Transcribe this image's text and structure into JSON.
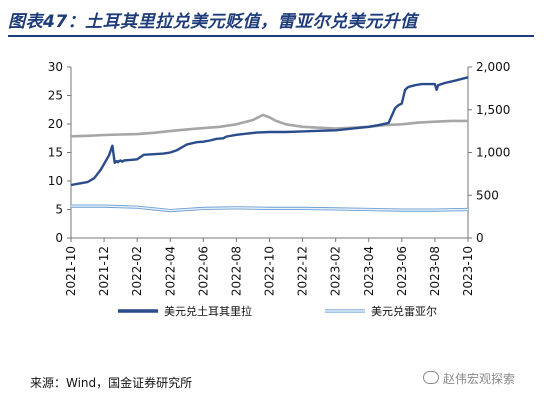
{
  "figure": {
    "title": "图表47：土耳其里拉兑美元贬值，雷亚尔兑美元升值",
    "source": "来源：Wind，国金证券研究所",
    "watermark": "赵伟宏观探索"
  },
  "chart_data": {
    "type": "line",
    "x_tick_labels": [
      "2021-10",
      "2021-12",
      "2022-02",
      "2022-04",
      "2022-06",
      "2022-08",
      "2022-10",
      "2022-12",
      "2023-02",
      "2023-04",
      "2023-06",
      "2023-08",
      "2023-10"
    ],
    "left_axis": {
      "ylim": [
        0,
        30
      ],
      "ticks": [
        0,
        5,
        10,
        15,
        20,
        25,
        30
      ]
    },
    "right_axis": {
      "ylim": [
        0,
        2000
      ],
      "ticks": [
        "0",
        "500",
        "1,000",
        "1,500",
        "2,000"
      ]
    },
    "series": [
      {
        "name": "美元兑土耳其里拉",
        "axis": "left",
        "color": "#2b4c8c",
        "x": [
          0,
          0.2,
          0.5,
          0.7,
          0.9,
          1.05,
          1.15,
          1.25,
          1.32,
          1.38,
          1.42,
          1.45,
          1.5,
          1.55,
          1.6,
          1.8,
          2.0,
          2.2,
          2.5,
          2.8,
          3.0,
          3.2,
          3.5,
          3.8,
          4.0,
          4.2,
          4.4,
          4.6,
          4.7,
          4.8,
          5.0,
          5.3,
          5.6,
          6.0,
          6.5,
          7.0,
          7.5,
          8.0,
          8.5,
          9.0,
          9.3,
          9.6,
          9.8,
          9.9,
          10.0,
          10.1,
          10.2,
          10.4,
          10.6,
          10.8,
          11.0,
          11.05,
          11.1,
          11.3,
          11.6,
          12.0
        ],
        "values": [
          9.3,
          9.5,
          9.8,
          10.5,
          12.0,
          13.5,
          14.5,
          16.2,
          13.2,
          13.5,
          13.3,
          13.5,
          13.6,
          13.4,
          13.6,
          13.7,
          13.8,
          14.6,
          14.7,
          14.8,
          15.0,
          15.4,
          16.4,
          16.8,
          16.9,
          17.1,
          17.4,
          17.5,
          17.8,
          17.9,
          18.1,
          18.3,
          18.5,
          18.6,
          18.6,
          18.7,
          18.8,
          18.9,
          19.2,
          19.5,
          19.8,
          20.2,
          22.8,
          23.3,
          23.6,
          26.0,
          26.5,
          26.8,
          27.0,
          27.0,
          27.0,
          26.0,
          26.8,
          27.2,
          27.6,
          28.2
        ]
      },
      {
        "name": "美元兑雷亚尔",
        "axis": "left",
        "color": "#9ec3e8",
        "x": [
          0,
          1,
          2,
          3,
          4,
          5,
          6,
          7,
          8,
          9,
          10,
          11,
          12
        ],
        "values": [
          5.6,
          5.6,
          5.4,
          4.8,
          5.2,
          5.3,
          5.2,
          5.2,
          5.1,
          5.0,
          4.9,
          4.9,
          5.0
        ]
      },
      {
        "name": "",
        "axis": "right",
        "color": "#a6a6a6",
        "x": [
          0,
          0.5,
          1,
          1.5,
          2,
          2.5,
          3,
          3.5,
          4,
          4.5,
          5,
          5.5,
          5.8,
          6.0,
          6.2,
          6.5,
          7,
          7.5,
          8,
          8.5,
          9,
          9.5,
          10,
          10.5,
          11,
          11.5,
          12
        ],
        "values": [
          1190,
          1195,
          1205,
          1210,
          1215,
          1230,
          1250,
          1270,
          1285,
          1300,
          1330,
          1380,
          1440,
          1410,
          1370,
          1330,
          1300,
          1290,
          1280,
          1290,
          1300,
          1320,
          1330,
          1350,
          1360,
          1370,
          1370
        ]
      }
    ],
    "legend": {
      "position": "bottom",
      "entries": [
        {
          "label": "美元兑土耳其里拉",
          "series_index": 0
        },
        {
          "label": "美元兑雷亚尔",
          "series_index": 1
        }
      ]
    },
    "grid": false
  }
}
